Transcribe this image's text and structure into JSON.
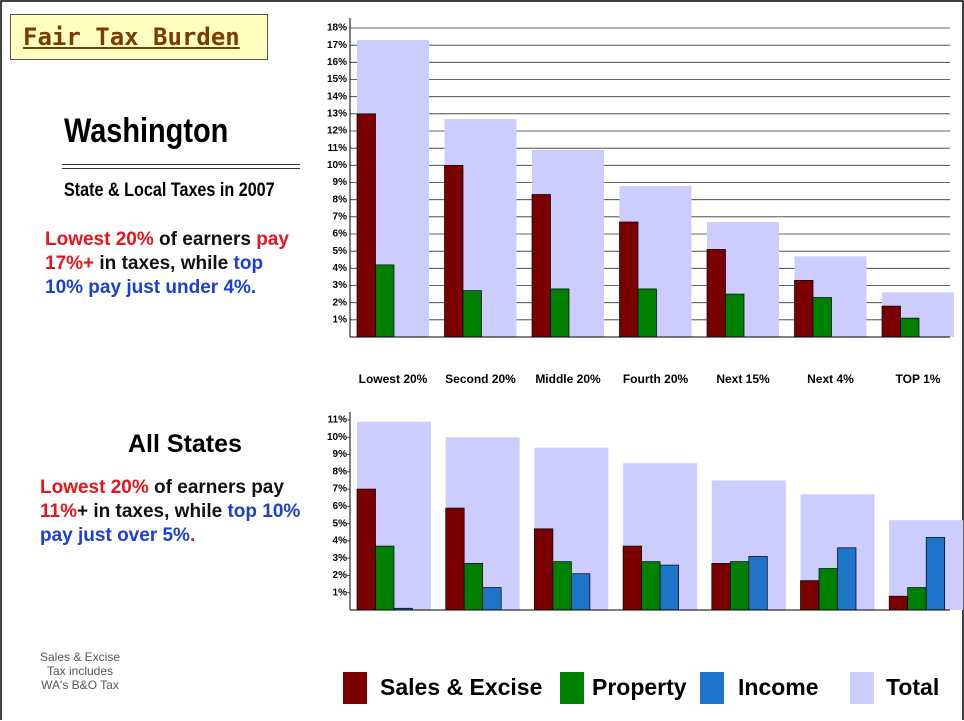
{
  "title": "Fair Tax Burden",
  "washington": {
    "heading": "Washington",
    "subheading": "State & Local Taxes in 2007",
    "note": [
      {
        "text": "Lowest 20%",
        "color": "#e8141c"
      },
      {
        "text": " of earners ",
        "color": "#111111"
      },
      {
        "text": "pay 17%+",
        "color": "#e8141c"
      },
      {
        "text": " in taxes, while ",
        "color": "#111111"
      },
      {
        "text": "top 10% pay just under 4%.",
        "color": "#1c3fd0"
      }
    ]
  },
  "all_states": {
    "heading": "All States",
    "note": [
      {
        "text": "Lowest 20%",
        "color": "#e8141c"
      },
      {
        "text": " of earners pay ",
        "color": "#111111"
      },
      {
        "text": "11%",
        "color": "#e8141c"
      },
      {
        "text": "+ in taxes, while ",
        "color": "#111111"
      },
      {
        "text": "top 10% pay just over 5%",
        "color": "#1c3fd0"
      },
      {
        "text": ".",
        "color": "#e8141c"
      }
    ]
  },
  "footnote": [
    "Sales & Excise",
    "Tax includes",
    "WA's B&O Tax"
  ],
  "chart_data": [
    {
      "type": "bar",
      "grid": true,
      "categories": [
        "Lowest 20%",
        "Second 20%",
        "Middle 20%",
        "Fourth 20%",
        "Next 15%",
        "Next 4%",
        "TOP 1%"
      ],
      "series": [
        {
          "name": "Sales & Excise",
          "color": "#7b0000",
          "values": [
            13.0,
            10.0,
            8.3,
            6.7,
            5.1,
            3.3,
            1.8
          ]
        },
        {
          "name": "Property",
          "color": "#008000",
          "values": [
            4.2,
            2.7,
            2.8,
            2.8,
            2.5,
            2.3,
            1.1
          ]
        },
        {
          "name": "Total",
          "color": "#ccccff",
          "values": [
            17.3,
            12.7,
            10.9,
            8.8,
            6.7,
            4.7,
            2.6
          ]
        }
      ],
      "ylim": [
        0,
        18
      ],
      "yticks": [
        {
          "value": 1,
          "label": "1%"
        },
        {
          "value": 2,
          "label": "2%"
        },
        {
          "value": 3,
          "label": "3%"
        },
        {
          "value": 4,
          "label": "4%"
        },
        {
          "value": 5,
          "label": "5%"
        },
        {
          "value": 6,
          "label": "6%"
        },
        {
          "value": 7,
          "label": "7%"
        },
        {
          "value": 8,
          "label": "8%"
        },
        {
          "value": 9,
          "label": "9%"
        },
        {
          "value": 10,
          "label": "10%"
        },
        {
          "value": 11,
          "label": "11%"
        },
        {
          "value": 12,
          "label": "12%"
        },
        {
          "value": 13,
          "label": "13%"
        },
        {
          "value": 14,
          "label": "14%"
        },
        {
          "value": 15,
          "label": "15%"
        },
        {
          "value": 16,
          "label": "16%"
        },
        {
          "value": 17,
          "label": "17%"
        },
        {
          "value": 18,
          "label": "18%"
        }
      ]
    },
    {
      "type": "bar",
      "grid": false,
      "series": [
        {
          "name": "Sales & Excise",
          "color": "#7b0000",
          "values": [
            7.0,
            5.9,
            4.7,
            3.7,
            2.7,
            1.7,
            0.8
          ]
        },
        {
          "name": "Property",
          "color": "#008000",
          "values": [
            3.7,
            2.7,
            2.8,
            2.8,
            2.8,
            2.4,
            1.3
          ]
        },
        {
          "name": "Income",
          "color": "#1e74c8",
          "values": [
            0.1,
            1.3,
            2.1,
            2.6,
            3.1,
            3.6,
            4.2
          ]
        },
        {
          "name": "Total",
          "color": "#ccccff",
          "values": [
            10.9,
            10.0,
            9.4,
            8.5,
            7.5,
            6.7,
            5.2
          ]
        }
      ],
      "ylim": [
        0,
        11
      ],
      "yticks": [
        {
          "value": 1,
          "label": "1%"
        },
        {
          "value": 2,
          "label": "2%"
        },
        {
          "value": 3,
          "label": "3%"
        },
        {
          "value": 4,
          "label": "4%"
        },
        {
          "value": 5,
          "label": "5%"
        },
        {
          "value": 6,
          "label": "6%"
        },
        {
          "value": 7,
          "label": "7%"
        },
        {
          "value": 8,
          "label": "8%"
        },
        {
          "value": 9,
          "label": "9%"
        },
        {
          "value": 10,
          "label": "10%"
        },
        {
          "value": 11,
          "label": "11%"
        }
      ]
    }
  ]
}
